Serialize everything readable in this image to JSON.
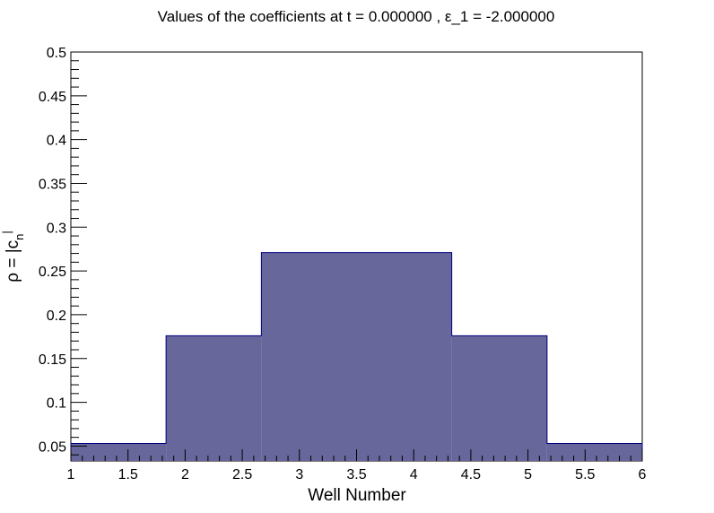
{
  "chart_data": {
    "type": "bar",
    "title": "Values of the coefficients at t = 0.000000 , ε_1 = -2.000000",
    "xlabel": "Well Number",
    "ylabel": {
      "main": "ρ = |c",
      "sub": "n",
      "sup": "|"
    },
    "xlim": [
      1,
      6
    ],
    "ylim": [
      0.033,
      0.5
    ],
    "bin_edges": [
      1.0,
      1.833,
      2.667,
      3.5,
      4.333,
      5.167,
      6.0
    ],
    "values": [
      0.053,
      0.176,
      0.271,
      0.271,
      0.176,
      0.053
    ],
    "x_ticks": [
      "1",
      "1.5",
      "2",
      "2.5",
      "3",
      "3.5",
      "4",
      "4.5",
      "5",
      "5.5",
      "6"
    ],
    "y_ticks": [
      "0.05",
      "0.1",
      "0.15",
      "0.2",
      "0.25",
      "0.3",
      "0.35",
      "0.4",
      "0.45",
      "0.5"
    ],
    "fill_color": "#67679b",
    "line_color": "#000080",
    "grid": false
  }
}
